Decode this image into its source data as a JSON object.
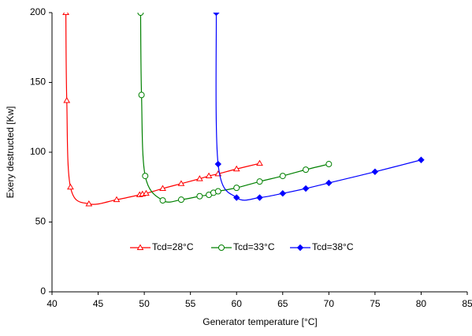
{
  "chart_data": {
    "type": "line",
    "xlabel": "Generator temperature [°C]",
    "ylabel": "Exery destructed [Kw]",
    "xlim": [
      40,
      85
    ],
    "xticks": [
      40,
      45,
      50,
      55,
      60,
      65,
      70,
      75,
      80,
      85
    ],
    "ylim": [
      0,
      200
    ],
    "yticks": [
      0,
      50,
      100,
      150,
      200
    ],
    "legend": "inside-lower-center",
    "series": [
      {
        "name": "Tcd=28°C",
        "color": "#ff0000",
        "marker": "triangle",
        "x": [
          41.5,
          41.6,
          42,
          44,
          47,
          49.5,
          49.8,
          50.2,
          52,
          54,
          56,
          57,
          58,
          60,
          62.5
        ],
        "values": [
          200,
          137,
          75,
          63,
          66,
          69.5,
          70,
          70.5,
          74,
          77.5,
          81,
          83,
          84.5,
          88,
          92
        ]
      },
      {
        "name": "Tcd=33°C",
        "color": "#008000",
        "marker": "circle",
        "x": [
          49.6,
          49.7,
          50.1,
          52,
          54,
          56,
          57,
          57.5,
          58,
          60,
          62.5,
          65,
          67.5,
          70
        ],
        "values": [
          200,
          141,
          83,
          65.5,
          66,
          68.5,
          69.5,
          71,
          72,
          74.5,
          79,
          83,
          87.5,
          91.5
        ]
      },
      {
        "name": "Tcd=38°C",
        "color": "#0000ff",
        "marker": "diamond",
        "x": [
          57.8,
          58,
          60,
          62.5,
          65,
          67.5,
          70,
          75,
          80
        ],
        "values": [
          200,
          91.5,
          67.5,
          67.5,
          70.5,
          74,
          78,
          86,
          94.5
        ]
      }
    ]
  }
}
